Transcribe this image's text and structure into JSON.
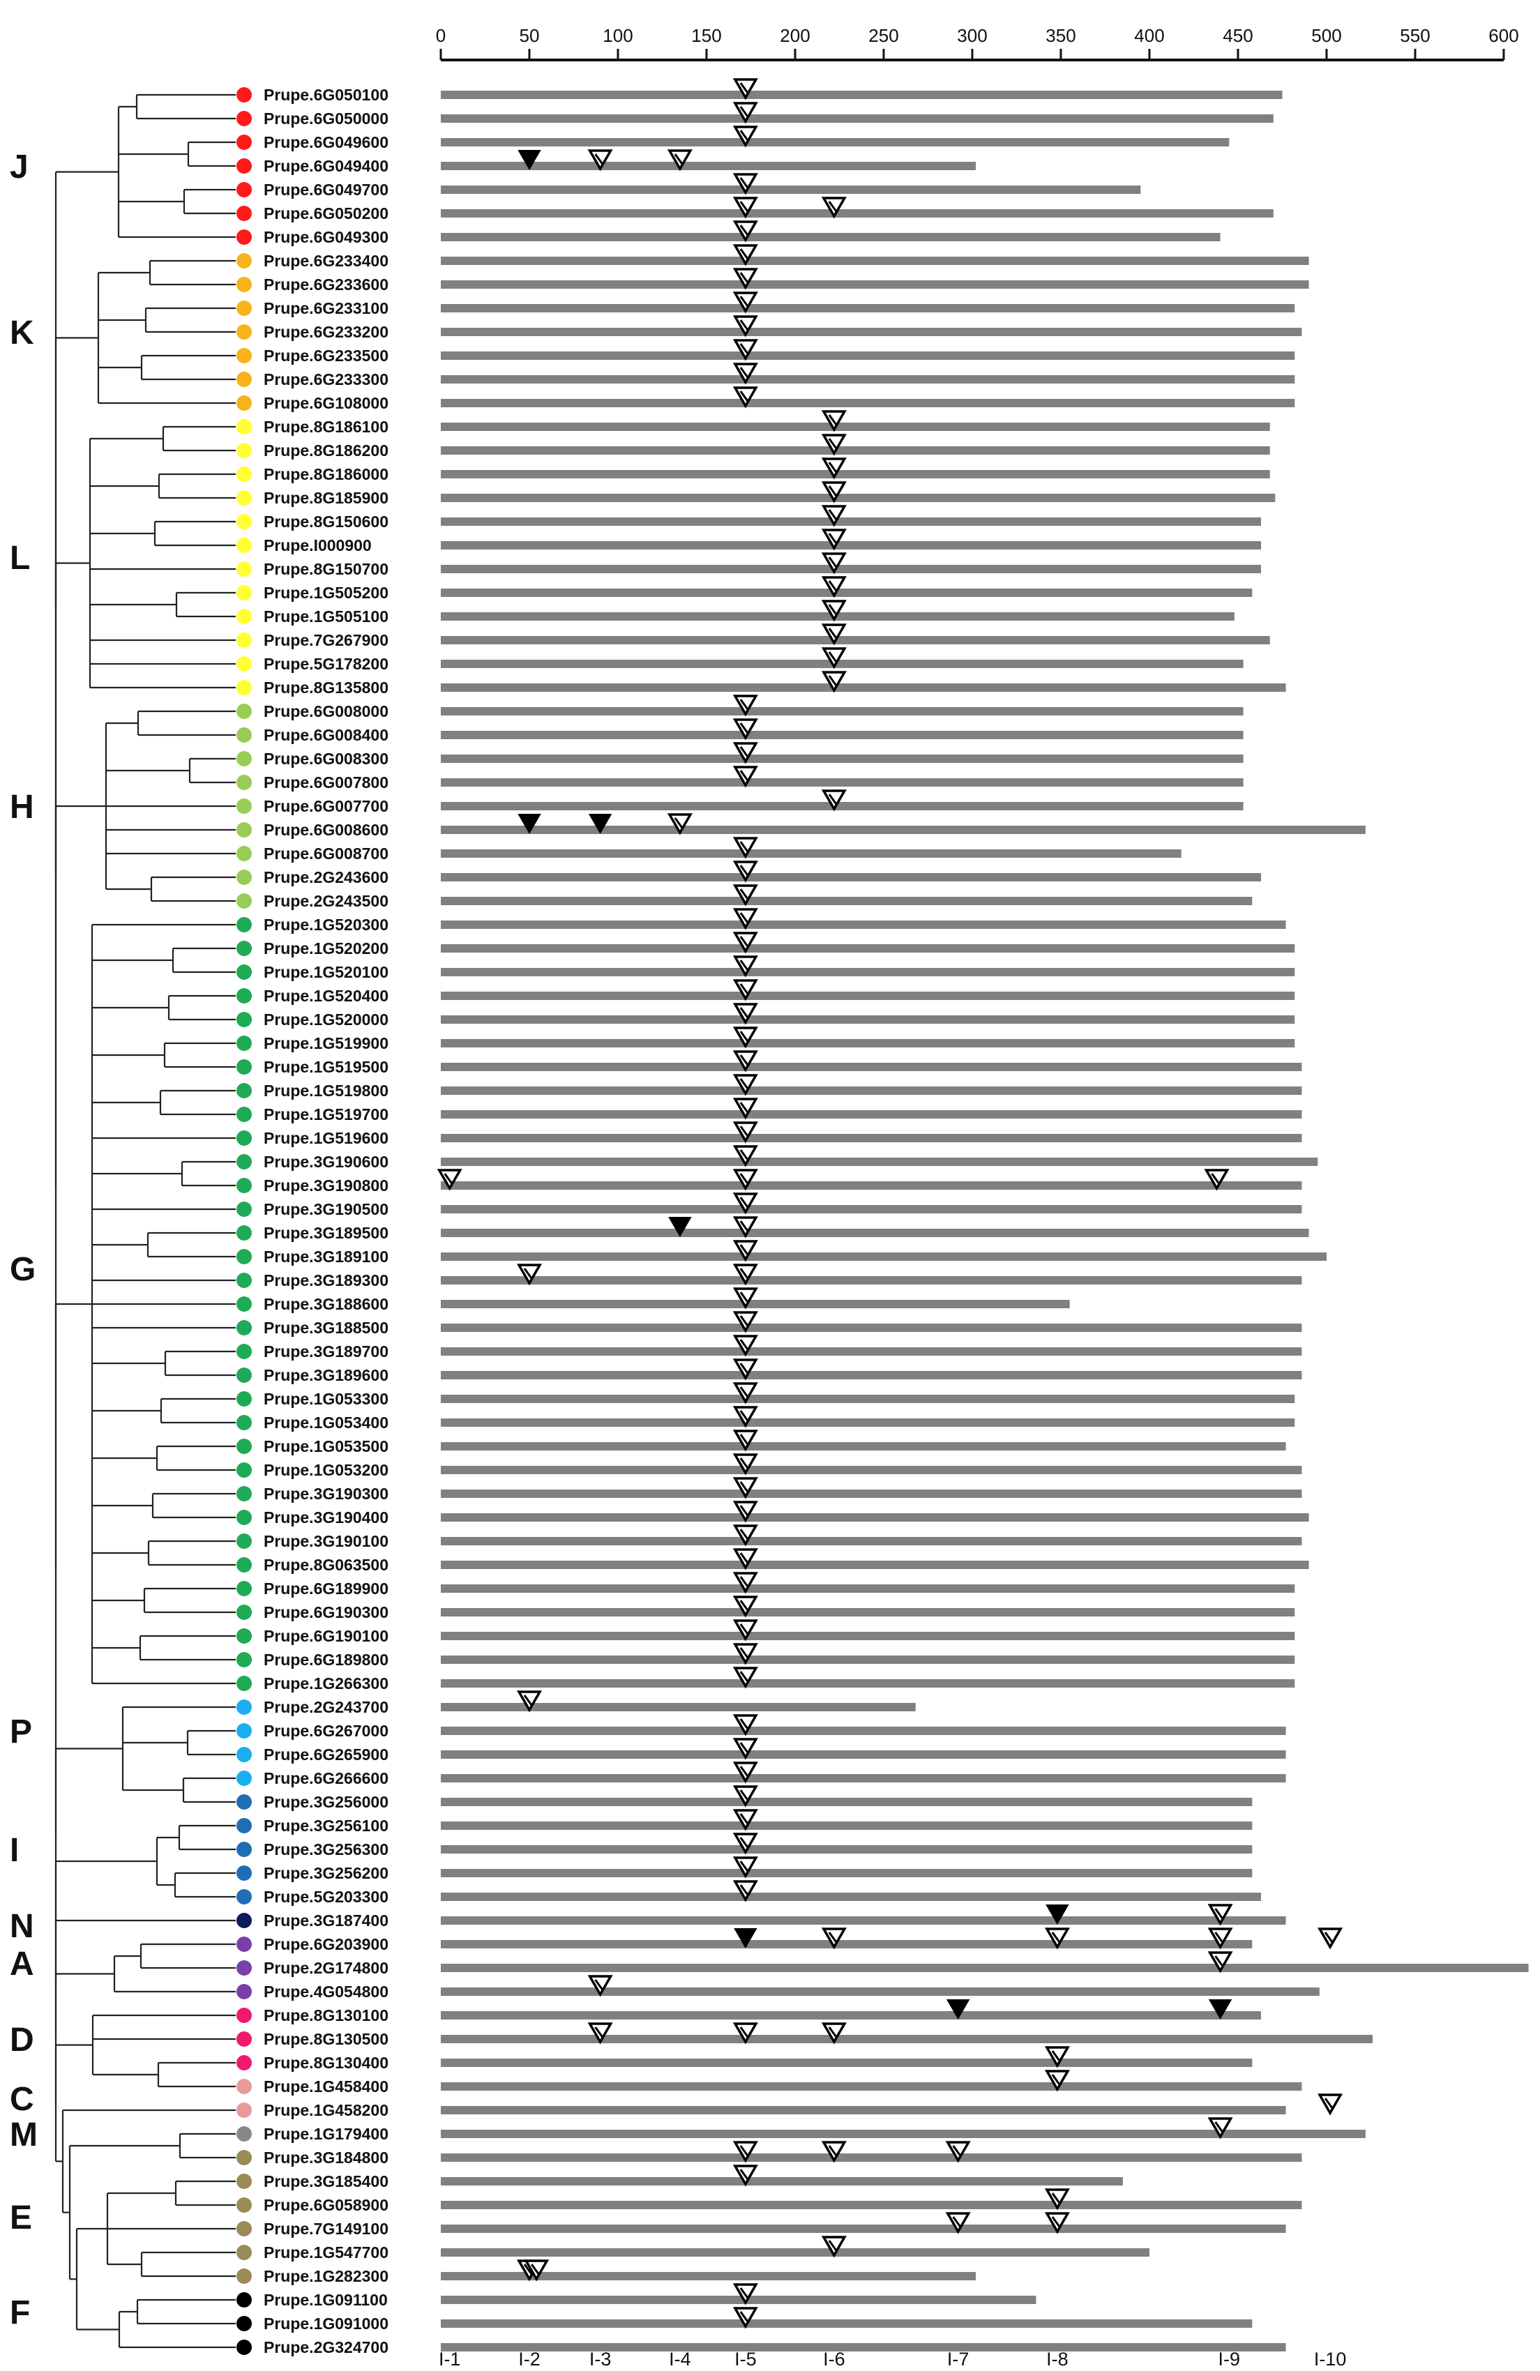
{
  "axis": {
    "min": 0,
    "max": 600,
    "ticks": [
      0,
      50,
      100,
      150,
      200,
      250,
      300,
      350,
      400,
      450,
      500,
      550,
      600
    ]
  },
  "colors": {
    "J": "#ff1a1a",
    "K": "#f7b21c",
    "L": "#ffff33",
    "H": "#99cc55",
    "G": "#1faa55",
    "P": "#1aaef0",
    "I": "#1f6eb5",
    "N": "#0d1a5c",
    "A": "#7a3fa8",
    "D": "#ef1a6e",
    "C": "#e89a9a",
    "M": "#888888",
    "E": "#9a8a55",
    "F": "#000000",
    "bar": "#808080",
    "tree": "#222222"
  },
  "clade_labels": [
    {
      "label": "J",
      "row": 3
    },
    {
      "label": "K",
      "row": 10
    },
    {
      "label": "L",
      "row": 19.5
    },
    {
      "label": "H",
      "row": 30
    },
    {
      "label": "G",
      "row": 49.5
    },
    {
      "label": "P",
      "row": 69
    },
    {
      "label": "I",
      "row": 74
    },
    {
      "label": "N",
      "row": 77.2
    },
    {
      "label": "A",
      "row": 78.8
    },
    {
      "label": "D",
      "row": 82
    },
    {
      "label": "C",
      "row": 84.5
    },
    {
      "label": "M",
      "row": 86
    },
    {
      "label": "E",
      "row": 89.5
    },
    {
      "label": "F",
      "row": 93.5
    }
  ],
  "intron_labels": [
    "I-1",
    "I-2",
    "I-3",
    "I-4",
    "I-5",
    "I-6",
    "I-7",
    "I-8",
    "I-9",
    "I-10"
  ],
  "intron_positions": [
    5,
    50,
    90,
    135,
    172,
    222,
    292,
    348,
    445,
    502
  ],
  "genes": [
    {
      "name": "Prupe.6G050100",
      "clade": "J",
      "len": 475,
      "m": [
        [
          172,
          0
        ]
      ]
    },
    {
      "name": "Prupe.6G050000",
      "clade": "J",
      "len": 470,
      "m": [
        [
          172,
          0
        ]
      ]
    },
    {
      "name": "Prupe.6G049600",
      "clade": "J",
      "len": 445,
      "m": [
        [
          172,
          0
        ]
      ]
    },
    {
      "name": "Prupe.6G049400",
      "clade": "J",
      "len": 302,
      "m": [
        [
          50,
          1
        ],
        [
          90,
          0
        ],
        [
          135,
          0
        ]
      ]
    },
    {
      "name": "Prupe.6G049700",
      "clade": "J",
      "len": 395,
      "m": [
        [
          172,
          0
        ]
      ]
    },
    {
      "name": "Prupe.6G050200",
      "clade": "J",
      "len": 470,
      "m": [
        [
          172,
          0
        ],
        [
          222,
          0
        ]
      ]
    },
    {
      "name": "Prupe.6G049300",
      "clade": "J",
      "len": 440,
      "m": [
        [
          172,
          0
        ]
      ]
    },
    {
      "name": "Prupe.6G233400",
      "clade": "K",
      "len": 490,
      "m": [
        [
          172,
          0
        ]
      ]
    },
    {
      "name": "Prupe.6G233600",
      "clade": "K",
      "len": 490,
      "m": [
        [
          172,
          0
        ]
      ]
    },
    {
      "name": "Prupe.6G233100",
      "clade": "K",
      "len": 482,
      "m": [
        [
          172,
          0
        ]
      ]
    },
    {
      "name": "Prupe.6G233200",
      "clade": "K",
      "len": 486,
      "m": [
        [
          172,
          0
        ]
      ]
    },
    {
      "name": "Prupe.6G233500",
      "clade": "K",
      "len": 482,
      "m": [
        [
          172,
          0
        ]
      ]
    },
    {
      "name": "Prupe.6G233300",
      "clade": "K",
      "len": 482,
      "m": [
        [
          172,
          0
        ]
      ]
    },
    {
      "name": "Prupe.6G108000",
      "clade": "K",
      "len": 482,
      "m": [
        [
          172,
          0
        ]
      ]
    },
    {
      "name": "Prupe.8G186100",
      "clade": "L",
      "len": 468,
      "m": [
        [
          222,
          0
        ]
      ]
    },
    {
      "name": "Prupe.8G186200",
      "clade": "L",
      "len": 468,
      "m": [
        [
          222,
          0
        ]
      ]
    },
    {
      "name": "Prupe.8G186000",
      "clade": "L",
      "len": 468,
      "m": [
        [
          222,
          0
        ]
      ]
    },
    {
      "name": "Prupe.8G185900",
      "clade": "L",
      "len": 471,
      "m": [
        [
          222,
          0
        ]
      ]
    },
    {
      "name": "Prupe.8G150600",
      "clade": "L",
      "len": 463,
      "m": [
        [
          222,
          0
        ]
      ]
    },
    {
      "name": "Prupe.I000900",
      "clade": "L",
      "len": 463,
      "m": [
        [
          222,
          0
        ]
      ]
    },
    {
      "name": "Prupe.8G150700",
      "clade": "L",
      "len": 463,
      "m": [
        [
          222,
          0
        ]
      ]
    },
    {
      "name": "Prupe.1G505200",
      "clade": "L",
      "len": 458,
      "m": [
        [
          222,
          0
        ]
      ]
    },
    {
      "name": "Prupe.1G505100",
      "clade": "L",
      "len": 448,
      "m": [
        [
          222,
          0
        ]
      ]
    },
    {
      "name": "Prupe.7G267900",
      "clade": "L",
      "len": 468,
      "m": [
        [
          222,
          0
        ]
      ]
    },
    {
      "name": "Prupe.5G178200",
      "clade": "L",
      "len": 453,
      "m": [
        [
          222,
          0
        ]
      ]
    },
    {
      "name": "Prupe.8G135800",
      "clade": "L",
      "len": 477,
      "m": [
        [
          222,
          0
        ]
      ]
    },
    {
      "name": "Prupe.6G008000",
      "clade": "H",
      "len": 453,
      "m": [
        [
          172,
          0
        ]
      ]
    },
    {
      "name": "Prupe.6G008400",
      "clade": "H",
      "len": 453,
      "m": [
        [
          172,
          0
        ]
      ]
    },
    {
      "name": "Prupe.6G008300",
      "clade": "H",
      "len": 453,
      "m": [
        [
          172,
          0
        ]
      ]
    },
    {
      "name": "Prupe.6G007800",
      "clade": "H",
      "len": 453,
      "m": [
        [
          172,
          0
        ]
      ]
    },
    {
      "name": "Prupe.6G007700",
      "clade": "H",
      "len": 453,
      "m": [
        [
          222,
          0
        ]
      ]
    },
    {
      "name": "Prupe.6G008600",
      "clade": "H",
      "len": 522,
      "m": [
        [
          50,
          1
        ],
        [
          90,
          1
        ],
        [
          135,
          0
        ]
      ]
    },
    {
      "name": "Prupe.6G008700",
      "clade": "H",
      "len": 418,
      "m": [
        [
          172,
          0
        ]
      ]
    },
    {
      "name": "Prupe.2G243600",
      "clade": "H",
      "len": 463,
      "m": [
        [
          172,
          0
        ]
      ]
    },
    {
      "name": "Prupe.2G243500",
      "clade": "H",
      "len": 458,
      "m": [
        [
          172,
          0
        ]
      ]
    },
    {
      "name": "Prupe.1G520300",
      "clade": "G",
      "len": 477,
      "m": [
        [
          172,
          0
        ]
      ]
    },
    {
      "name": "Prupe.1G520200",
      "clade": "G",
      "len": 482,
      "m": [
        [
          172,
          0
        ]
      ]
    },
    {
      "name": "Prupe.1G520100",
      "clade": "G",
      "len": 482,
      "m": [
        [
          172,
          0
        ]
      ]
    },
    {
      "name": "Prupe.1G520400",
      "clade": "G",
      "len": 482,
      "m": [
        [
          172,
          0
        ]
      ]
    },
    {
      "name": "Prupe.1G520000",
      "clade": "G",
      "len": 482,
      "m": [
        [
          172,
          0
        ]
      ]
    },
    {
      "name": "Prupe.1G519900",
      "clade": "G",
      "len": 482,
      "m": [
        [
          172,
          0
        ]
      ]
    },
    {
      "name": "Prupe.1G519500",
      "clade": "G",
      "len": 486,
      "m": [
        [
          172,
          0
        ]
      ]
    },
    {
      "name": "Prupe.1G519800",
      "clade": "G",
      "len": 486,
      "m": [
        [
          172,
          0
        ]
      ]
    },
    {
      "name": "Prupe.1G519700",
      "clade": "G",
      "len": 486,
      "m": [
        [
          172,
          0
        ]
      ]
    },
    {
      "name": "Prupe.1G519600",
      "clade": "G",
      "len": 486,
      "m": [
        [
          172,
          0
        ]
      ]
    },
    {
      "name": "Prupe.3G190600",
      "clade": "G",
      "len": 495,
      "m": [
        [
          172,
          0
        ]
      ]
    },
    {
      "name": "Prupe.3G190800",
      "clade": "G",
      "len": 486,
      "m": [
        [
          5,
          0
        ],
        [
          172,
          0
        ],
        [
          438,
          0
        ]
      ]
    },
    {
      "name": "Prupe.3G190500",
      "clade": "G",
      "len": 486,
      "m": [
        [
          172,
          0
        ]
      ]
    },
    {
      "name": "Prupe.3G189500",
      "clade": "G",
      "len": 490,
      "m": [
        [
          135,
          1
        ],
        [
          172,
          0
        ]
      ]
    },
    {
      "name": "Prupe.3G189100",
      "clade": "G",
      "len": 500,
      "m": [
        [
          172,
          0
        ]
      ]
    },
    {
      "name": "Prupe.3G189300",
      "clade": "G",
      "len": 486,
      "m": [
        [
          50,
          0
        ],
        [
          172,
          0
        ]
      ]
    },
    {
      "name": "Prupe.3G188600",
      "clade": "G",
      "len": 355,
      "m": [
        [
          172,
          0
        ]
      ]
    },
    {
      "name": "Prupe.3G188500",
      "clade": "G",
      "len": 486,
      "m": [
        [
          172,
          0
        ]
      ]
    },
    {
      "name": "Prupe.3G189700",
      "clade": "G",
      "len": 486,
      "m": [
        [
          172,
          0
        ]
      ]
    },
    {
      "name": "Prupe.3G189600",
      "clade": "G",
      "len": 486,
      "m": [
        [
          172,
          0
        ]
      ]
    },
    {
      "name": "Prupe.1G053300",
      "clade": "G",
      "len": 482,
      "m": [
        [
          172,
          0
        ]
      ]
    },
    {
      "name": "Prupe.1G053400",
      "clade": "G",
      "len": 482,
      "m": [
        [
          172,
          0
        ]
      ]
    },
    {
      "name": "Prupe.1G053500",
      "clade": "G",
      "len": 477,
      "m": [
        [
          172,
          0
        ]
      ]
    },
    {
      "name": "Prupe.1G053200",
      "clade": "G",
      "len": 486,
      "m": [
        [
          172,
          0
        ]
      ]
    },
    {
      "name": "Prupe.3G190300",
      "clade": "G",
      "len": 486,
      "m": [
        [
          172,
          0
        ]
      ]
    },
    {
      "name": "Prupe.3G190400",
      "clade": "G",
      "len": 490,
      "m": [
        [
          172,
          0
        ]
      ]
    },
    {
      "name": "Prupe.3G190100",
      "clade": "G",
      "len": 486,
      "m": [
        [
          172,
          0
        ]
      ]
    },
    {
      "name": "Prupe.8G063500",
      "clade": "G",
      "len": 490,
      "m": [
        [
          172,
          0
        ]
      ]
    },
    {
      "name": "Prupe.6G189900",
      "clade": "G",
      "len": 482,
      "m": [
        [
          172,
          0
        ]
      ]
    },
    {
      "name": "Prupe.6G190300",
      "clade": "G",
      "len": 482,
      "m": [
        [
          172,
          0
        ]
      ]
    },
    {
      "name": "Prupe.6G190100",
      "clade": "G",
      "len": 482,
      "m": [
        [
          172,
          0
        ]
      ]
    },
    {
      "name": "Prupe.6G189800",
      "clade": "G",
      "len": 482,
      "m": [
        [
          172,
          0
        ]
      ]
    },
    {
      "name": "Prupe.1G266300",
      "clade": "G",
      "len": 482,
      "m": [
        [
          172,
          0
        ]
      ]
    },
    {
      "name": "Prupe.2G243700",
      "clade": "P",
      "len": 268,
      "m": [
        [
          50,
          0
        ]
      ]
    },
    {
      "name": "Prupe.6G267000",
      "clade": "P",
      "len": 477,
      "m": [
        [
          172,
          0
        ]
      ]
    },
    {
      "name": "Prupe.6G265900",
      "clade": "P",
      "len": 477,
      "m": [
        [
          172,
          0
        ]
      ]
    },
    {
      "name": "Prupe.6G266600",
      "clade": "P",
      "len": 477,
      "m": [
        [
          172,
          0
        ]
      ]
    },
    {
      "name": "Prupe.3G256000",
      "clade": "I",
      "len": 458,
      "m": [
        [
          172,
          0
        ]
      ]
    },
    {
      "name": "Prupe.3G256100",
      "clade": "I",
      "len": 458,
      "m": [
        [
          172,
          0
        ]
      ]
    },
    {
      "name": "Prupe.3G256300",
      "clade": "I",
      "len": 458,
      "m": [
        [
          172,
          0
        ]
      ]
    },
    {
      "name": "Prupe.3G256200",
      "clade": "I",
      "len": 458,
      "m": [
        [
          172,
          0
        ]
      ]
    },
    {
      "name": "Prupe.5G203300",
      "clade": "I",
      "len": 463,
      "m": [
        [
          172,
          0
        ]
      ]
    },
    {
      "name": "Prupe.3G187400",
      "clade": "N",
      "len": 477,
      "m": [
        [
          348,
          1
        ],
        [
          440,
          0
        ]
      ]
    },
    {
      "name": "Prupe.6G203900",
      "clade": "A",
      "len": 458,
      "m": [
        [
          172,
          1
        ],
        [
          222,
          0
        ],
        [
          348,
          0
        ],
        [
          440,
          0
        ],
        [
          502,
          0
        ]
      ]
    },
    {
      "name": "Prupe.2G174800",
      "clade": "A",
      "len": 614,
      "m": [
        [
          440,
          0
        ]
      ]
    },
    {
      "name": "Prupe.4G054800",
      "clade": "A",
      "len": 496,
      "m": [
        [
          90,
          0
        ]
      ]
    },
    {
      "name": "Prupe.8G130100",
      "clade": "D",
      "len": 463,
      "m": [
        [
          292,
          1
        ],
        [
          440,
          1
        ]
      ]
    },
    {
      "name": "Prupe.8G130500",
      "clade": "D",
      "len": 526,
      "m": [
        [
          90,
          0
        ],
        [
          172,
          0
        ],
        [
          222,
          0
        ]
      ]
    },
    {
      "name": "Prupe.8G130400",
      "clade": "D",
      "len": 458,
      "m": [
        [
          348,
          0
        ]
      ]
    },
    {
      "name": "Prupe.1G458400",
      "clade": "C",
      "len": 486,
      "m": [
        [
          348,
          0
        ]
      ]
    },
    {
      "name": "Prupe.1G458200",
      "clade": "C",
      "len": 477,
      "m": [
        [
          502,
          0
        ]
      ]
    },
    {
      "name": "Prupe.1G179400",
      "clade": "M",
      "len": 522,
      "m": [
        [
          440,
          0
        ]
      ]
    },
    {
      "name": "Prupe.3G184800",
      "clade": "E",
      "len": 486,
      "m": [
        [
          172,
          0
        ],
        [
          222,
          0
        ],
        [
          292,
          0
        ]
      ]
    },
    {
      "name": "Prupe.3G185400",
      "clade": "E",
      "len": 385,
      "m": [
        [
          172,
          0
        ]
      ]
    },
    {
      "name": "Prupe.6G058900",
      "clade": "E",
      "len": 486,
      "m": [
        [
          348,
          0
        ]
      ]
    },
    {
      "name": "Prupe.7G149100",
      "clade": "E",
      "len": 477,
      "m": [
        [
          292,
          0
        ],
        [
          348,
          0
        ]
      ]
    },
    {
      "name": "Prupe.1G547700",
      "clade": "E",
      "len": 400,
      "m": [
        [
          222,
          0
        ]
      ]
    },
    {
      "name": "Prupe.1G282300",
      "clade": "E",
      "len": 302,
      "m": [
        [
          50,
          0
        ],
        [
          54,
          0
        ]
      ]
    },
    {
      "name": "Prupe.1G091100",
      "clade": "F",
      "len": 336,
      "m": [
        [
          172,
          0
        ]
      ]
    },
    {
      "name": "Prupe.1G091000",
      "clade": "F",
      "len": 458,
      "m": [
        [
          172,
          0
        ]
      ]
    },
    {
      "name": "Prupe.2G324700",
      "clade": "F",
      "len": 477,
      "m": []
    }
  ],
  "groups": [
    [
      0,
      1
    ],
    [
      2,
      3
    ],
    [
      4,
      5
    ],
    [
      7,
      8
    ],
    [
      9,
      10
    ],
    [
      11,
      12
    ],
    [
      14,
      15
    ],
    [
      16,
      17
    ],
    [
      18,
      19
    ],
    [
      21,
      22
    ],
    [
      26,
      27
    ],
    [
      28,
      29
    ],
    [
      33,
      34
    ],
    [
      36,
      37
    ],
    [
      38,
      39
    ],
    [
      40,
      41
    ],
    [
      42,
      43
    ],
    [
      45,
      46
    ],
    [
      48,
      49
    ],
    [
      53,
      54
    ],
    [
      55,
      56
    ],
    [
      57,
      58
    ],
    [
      59,
      60
    ],
    [
      61,
      62
    ],
    [
      63,
      64
    ],
    [
      65,
      66
    ],
    [
      69,
      70
    ],
    [
      71,
      72
    ],
    [
      73,
      74
    ],
    [
      75,
      76
    ],
    [
      78,
      79
    ],
    [
      83,
      84
    ],
    [
      86,
      87
    ],
    [
      88,
      89
    ],
    [
      91,
      92
    ],
    [
      93,
      94
    ]
  ]
}
